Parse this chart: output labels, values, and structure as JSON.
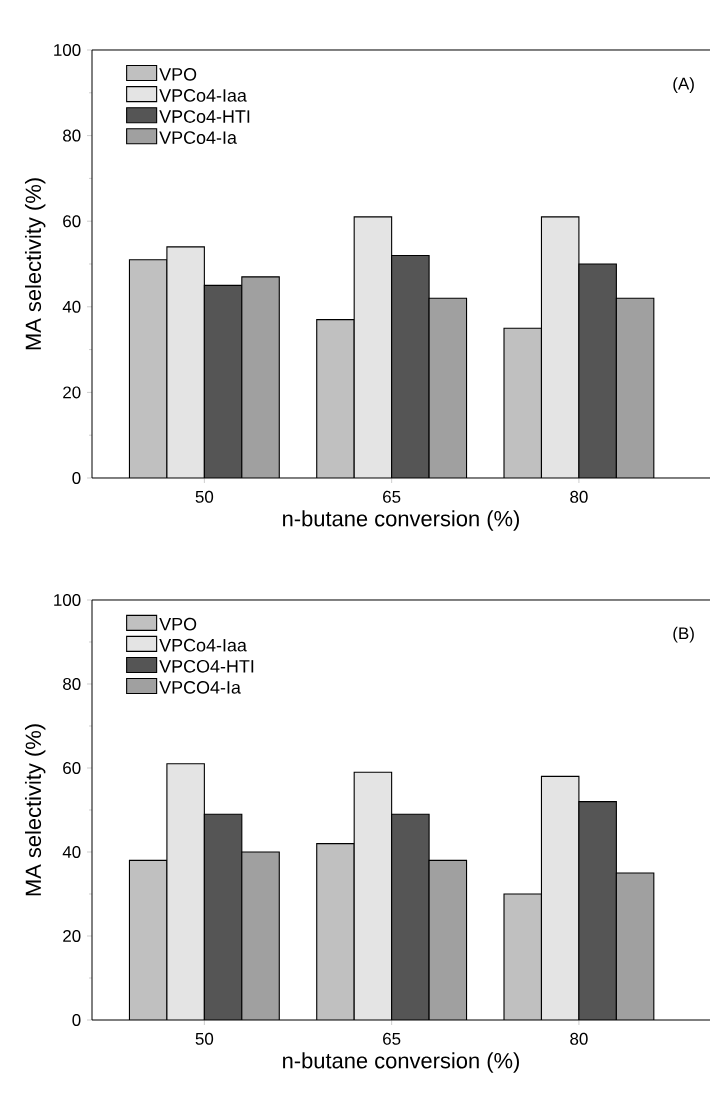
{
  "chart_data": [
    {
      "type": "bar",
      "categories": [
        "50",
        "65",
        "80"
      ],
      "xlabel": "n-butane conversion (%)",
      "ylabel": "MA selectivity (%)",
      "ylim": [
        0,
        100
      ],
      "yticks": [
        0,
        20,
        40,
        60,
        80,
        100
      ],
      "legend": "top left",
      "annotations": [
        "(A)"
      ],
      "series": [
        {
          "name": "VPO",
          "color": "#c0c0c0",
          "values": [
            51,
            37,
            35
          ]
        },
        {
          "name": "VPCo4-Iaa",
          "color": "#e4e4e4",
          "values": [
            54,
            61,
            61
          ]
        },
        {
          "name": "VPCo4-HTI",
          "color": "#555555",
          "values": [
            45,
            52,
            50
          ]
        },
        {
          "name": "VPCo4-Ia",
          "color": "#a0a0a0",
          "values": [
            47,
            42,
            42
          ]
        }
      ]
    },
    {
      "type": "bar",
      "categories": [
        "50",
        "65",
        "80"
      ],
      "xlabel": "n-butane conversion (%)",
      "ylabel": "MA selectivity (%)",
      "ylim": [
        0,
        100
      ],
      "yticks": [
        0,
        20,
        40,
        60,
        80,
        100
      ],
      "legend": "top left",
      "annotations": [
        "(B)"
      ],
      "series": [
        {
          "name": "VPO",
          "color": "#c0c0c0",
          "values": [
            38,
            42,
            30
          ]
        },
        {
          "name": "VPCo4-Iaa",
          "color": "#e4e4e4",
          "values": [
            61,
            59,
            58
          ]
        },
        {
          "name": "VPCO4-HTI",
          "color": "#555555",
          "values": [
            49,
            49,
            52
          ]
        },
        {
          "name": "VPCO4-Ia",
          "color": "#a0a0a0",
          "values": [
            40,
            38,
            35
          ]
        }
      ]
    }
  ]
}
